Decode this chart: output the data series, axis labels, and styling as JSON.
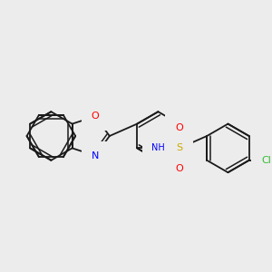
{
  "background_color": "#ececec",
  "bond_color": "#1a1a1a",
  "O_color": "#ff0000",
  "N_color": "#0000ff",
  "S_color": "#ccaa00",
  "Cl_color": "#33bb33",
  "H_color": "#888888",
  "lw": 1.3,
  "lw_dbl": 1.1,
  "fs": 7.5,
  "figsize": [
    3.0,
    3.0
  ],
  "dpi": 100,
  "xlim": [
    0.0,
    10.0
  ],
  "ylim": [
    0.0,
    10.0
  ]
}
